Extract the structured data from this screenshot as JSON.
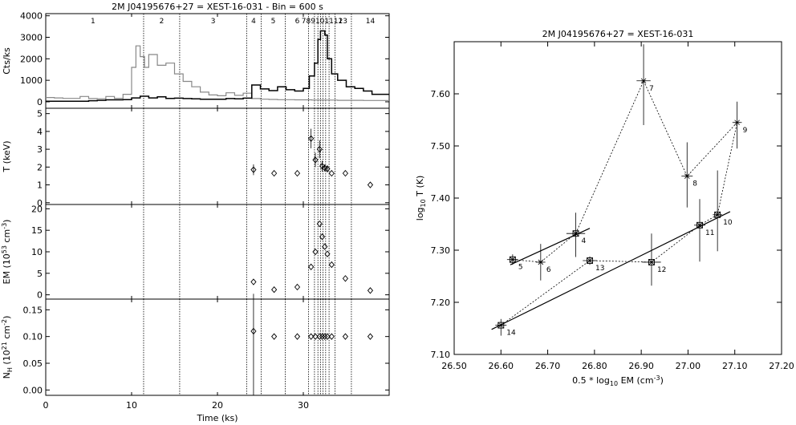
{
  "left": {
    "title": "2M J04195676+27 = XEST-16-031  -  Bin =  600 s",
    "xlabel": "Time (ks)",
    "xlim": [
      0,
      40
    ],
    "xticks": [
      0,
      10,
      20,
      30
    ],
    "separators_ks": [
      11.4,
      15.6,
      23.4,
      25.1,
      27.9,
      30.6,
      31.3,
      31.7,
      32.0,
      32.3,
      32.6,
      33.0,
      33.7,
      35.6
    ],
    "segment_labels": [
      {
        "text": "1",
        "x": 5.5
      },
      {
        "text": "2",
        "x": 13.5
      },
      {
        "text": "3",
        "x": 19.5
      },
      {
        "text": "4",
        "x": 24.2
      },
      {
        "text": "5",
        "x": 26.5
      },
      {
        "text": "6",
        "x": 29.3
      },
      {
        "text": "789101112",
        "x": 32.2
      },
      {
        "text": "13",
        "x": 34.6
      },
      {
        "text": "14",
        "x": 37.8
      }
    ],
    "panels": [
      {
        "id": "cts",
        "ylabel": "Cts/ks",
        "ylim": [
          -300,
          4100
        ],
        "yticks": [
          0,
          1000,
          2000,
          3000,
          4000
        ]
      },
      {
        "id": "T",
        "ylabel": "T (keV)",
        "ylim": [
          -0.1,
          5.3
        ],
        "yticks": [
          0,
          1,
          2,
          3,
          4,
          5
        ]
      },
      {
        "id": "EM",
        "ylabel": "EM (10",
        "ylabel_sup": "53",
        "ylabel_tail": " cm",
        "ylabel_sup2": "-3",
        "ylabel_end": ")",
        "ylim": [
          -1,
          21
        ],
        "yticks": [
          0,
          5,
          10,
          15,
          20
        ]
      },
      {
        "id": "NH",
        "ylabel": "N",
        "ylabel_sub": "H",
        "ylabel_tail": " (10",
        "ylabel_sup": "21",
        "ylabel_tail2": " cm",
        "ylabel_sup2": "-2",
        "ylabel_end": ")",
        "ylim": [
          -0.01,
          0.17
        ],
        "yticks": [
          0.0,
          0.05,
          0.1,
          0.15
        ],
        "ytick_labels": [
          "0.00",
          "0.05",
          "0.10",
          "0.15"
        ]
      }
    ],
    "lc_flare": [
      [
        0,
        30
      ],
      [
        1,
        30
      ],
      [
        2,
        30
      ],
      [
        3,
        30
      ],
      [
        4,
        30
      ],
      [
        5,
        50
      ],
      [
        6,
        70
      ],
      [
        7,
        90
      ],
      [
        8,
        90
      ],
      [
        9,
        100
      ],
      [
        10,
        180
      ],
      [
        11,
        260
      ],
      [
        12,
        180
      ],
      [
        13,
        230
      ],
      [
        14,
        160
      ],
      [
        15,
        170
      ],
      [
        16,
        150
      ],
      [
        17,
        140
      ],
      [
        18,
        120
      ],
      [
        19,
        120
      ],
      [
        20,
        120
      ],
      [
        21,
        150
      ],
      [
        22,
        140
      ],
      [
        23,
        170
      ],
      [
        24,
        780
      ],
      [
        25,
        600
      ],
      [
        26,
        520
      ],
      [
        27,
        700
      ],
      [
        28,
        560
      ],
      [
        29,
        500
      ],
      [
        30,
        620
      ],
      [
        30.7,
        1200
      ],
      [
        31.3,
        1800
      ],
      [
        31.7,
        2900
      ],
      [
        32.0,
        3300
      ],
      [
        32.5,
        3100
      ],
      [
        32.8,
        2000
      ],
      [
        33.3,
        1300
      ],
      [
        34,
        1000
      ],
      [
        35,
        700
      ],
      [
        36,
        620
      ],
      [
        37,
        500
      ],
      [
        38,
        350
      ],
      [
        39,
        350
      ],
      [
        40,
        350
      ]
    ],
    "lc_ref": [
      [
        0,
        200
      ],
      [
        1,
        180
      ],
      [
        2,
        160
      ],
      [
        3,
        160
      ],
      [
        4,
        250
      ],
      [
        5,
        150
      ],
      [
        6,
        140
      ],
      [
        7,
        250
      ],
      [
        8,
        160
      ],
      [
        9,
        350
      ],
      [
        10,
        1600
      ],
      [
        10.5,
        2600
      ],
      [
        11,
        2100
      ],
      [
        11.5,
        1600
      ],
      [
        12,
        2200
      ],
      [
        13,
        1700
      ],
      [
        14,
        1800
      ],
      [
        15,
        1300
      ],
      [
        16,
        950
      ],
      [
        17,
        700
      ],
      [
        18,
        450
      ],
      [
        19,
        320
      ],
      [
        20,
        280
      ],
      [
        21,
        420
      ],
      [
        22,
        300
      ],
      [
        23,
        400
      ],
      [
        24,
        150
      ],
      [
        25,
        120
      ],
      [
        26,
        110
      ],
      [
        27,
        100
      ],
      [
        28,
        100
      ],
      [
        29,
        90
      ],
      [
        30,
        90
      ],
      [
        31,
        80
      ],
      [
        32,
        80
      ],
      [
        33,
        80
      ],
      [
        34,
        70
      ],
      [
        35,
        70
      ],
      [
        36,
        70
      ],
      [
        37,
        60
      ],
      [
        38,
        60
      ],
      [
        39,
        60
      ],
      [
        40,
        60
      ]
    ],
    "T_points": [
      {
        "x": 24.2,
        "y": 1.85,
        "e": 0.3
      },
      {
        "x": 26.6,
        "y": 1.65
      },
      {
        "x": 29.3,
        "y": 1.65
      },
      {
        "x": 30.9,
        "y": 3.6,
        "e": 0.55
      },
      {
        "x": 31.4,
        "y": 2.4,
        "e": 0.4
      },
      {
        "x": 31.9,
        "y": 3.0,
        "e": 0.5
      },
      {
        "x": 32.2,
        "y": 2.05,
        "e": 0.3
      },
      {
        "x": 32.5,
        "y": 1.95,
        "e": 0.2
      },
      {
        "x": 32.8,
        "y": 1.9,
        "e": 0.2
      },
      {
        "x": 33.3,
        "y": 1.65
      },
      {
        "x": 34.9,
        "y": 1.65
      },
      {
        "x": 37.8,
        "y": 1.0
      }
    ],
    "EM_points": [
      {
        "x": 24.2,
        "y": 3.0
      },
      {
        "x": 26.6,
        "y": 1.2
      },
      {
        "x": 29.3,
        "y": 1.8
      },
      {
        "x": 30.9,
        "y": 6.5
      },
      {
        "x": 31.4,
        "y": 10.0
      },
      {
        "x": 31.9,
        "y": 16.5
      },
      {
        "x": 32.2,
        "y": 13.5
      },
      {
        "x": 32.5,
        "y": 11.2
      },
      {
        "x": 32.8,
        "y": 9.5
      },
      {
        "x": 33.3,
        "y": 7.0
      },
      {
        "x": 34.9,
        "y": 3.8
      },
      {
        "x": 37.8,
        "y": 1.0
      }
    ],
    "NH_points": [
      {
        "x": 24.2,
        "y": 0.11,
        "e_up": 0.07,
        "e_dn": 0.12
      },
      {
        "x": 26.6,
        "y": 0.1
      },
      {
        "x": 29.3,
        "y": 0.1
      },
      {
        "x": 30.9,
        "y": 0.1
      },
      {
        "x": 31.4,
        "y": 0.1
      },
      {
        "x": 31.9,
        "y": 0.1
      },
      {
        "x": 32.2,
        "y": 0.1
      },
      {
        "x": 32.5,
        "y": 0.1
      },
      {
        "x": 32.8,
        "y": 0.1
      },
      {
        "x": 33.3,
        "y": 0.1
      },
      {
        "x": 34.9,
        "y": 0.1
      },
      {
        "x": 37.8,
        "y": 0.1
      }
    ]
  },
  "right": {
    "title": "2M J04195676+27 = XEST-16-031",
    "xlabel": "0.5 * log",
    "xlabel_sub": "10",
    "xlabel_tail": " EM (cm",
    "xlabel_sup": "-3",
    "xlabel_end": ")",
    "ylabel": "log",
    "ylabel_sub": "10",
    "ylabel_tail": " T (K)",
    "xlim": [
      26.5,
      27.2
    ],
    "ylim": [
      7.1,
      7.7
    ],
    "xticks": [
      26.5,
      26.6,
      26.7,
      26.8,
      26.9,
      27.0,
      27.1,
      27.2
    ],
    "xtick_labels": [
      "26.50",
      "26.60",
      "26.70",
      "26.80",
      "26.90",
      "27.00",
      "27.10",
      "27.20"
    ],
    "yticks": [
      7.1,
      7.2,
      7.3,
      7.4,
      7.5,
      7.6
    ],
    "ytick_labels": [
      "7.10",
      "7.20",
      "7.30",
      "7.40",
      "7.50",
      "7.60"
    ],
    "points": [
      {
        "label": "4",
        "x": 26.76,
        "y": 7.332,
        "boxed": true,
        "ex": 0.02,
        "ey_up": 0.04,
        "ey_dn": 0.045
      },
      {
        "label": "5",
        "x": 26.625,
        "y": 7.282,
        "boxed": true,
        "ex": 0.012,
        "ey_up": 0.01,
        "ey_dn": 0.01
      },
      {
        "label": "6",
        "x": 26.685,
        "y": 7.277,
        "boxed": false,
        "ex": 0.01,
        "ey_up": 0.035,
        "ey_dn": 0.035
      },
      {
        "label": "7",
        "x": 26.905,
        "y": 7.625,
        "boxed": false,
        "ex": 0.015,
        "ey_up": 0.07,
        "ey_dn": 0.085
      },
      {
        "label": "8",
        "x": 26.998,
        "y": 7.442,
        "boxed": false,
        "ex": 0.012,
        "ey_up": 0.065,
        "ey_dn": 0.06
      },
      {
        "label": "9",
        "x": 27.105,
        "y": 7.545,
        "boxed": false,
        "ex": 0.01,
        "ey_up": 0.04,
        "ey_dn": 0.05
      },
      {
        "label": "10",
        "x": 27.063,
        "y": 7.368,
        "boxed": true,
        "ex": 0.01,
        "ey_up": 0.085,
        "ey_dn": 0.07
      },
      {
        "label": "11",
        "x": 27.025,
        "y": 7.348,
        "boxed": true,
        "ex": 0.012,
        "ey_up": 0.05,
        "ey_dn": 0.07
      },
      {
        "label": "12",
        "x": 26.922,
        "y": 7.277,
        "boxed": true,
        "ex": 0.02,
        "ey_up": 0.055,
        "ey_dn": 0.045
      },
      {
        "label": "13",
        "x": 26.79,
        "y": 7.28,
        "boxed": true,
        "ex": 0.015,
        "ey_up": 0.008,
        "ey_dn": 0.008
      },
      {
        "label": "14",
        "x": 26.6,
        "y": 7.156,
        "boxed": true,
        "ex": 0.012,
        "ey_up": 0.012,
        "ey_dn": 0.02
      }
    ],
    "path_order": [
      "5",
      "6",
      "4",
      "7",
      "8",
      "9",
      "10",
      "11",
      "12",
      "13",
      "14"
    ],
    "fit_lines": [
      {
        "x": [
          26.62,
          26.79
        ],
        "y": [
          7.272,
          7.342
        ]
      },
      {
        "x": [
          26.58,
          27.09
        ],
        "y": [
          7.148,
          7.374
        ]
      }
    ]
  }
}
